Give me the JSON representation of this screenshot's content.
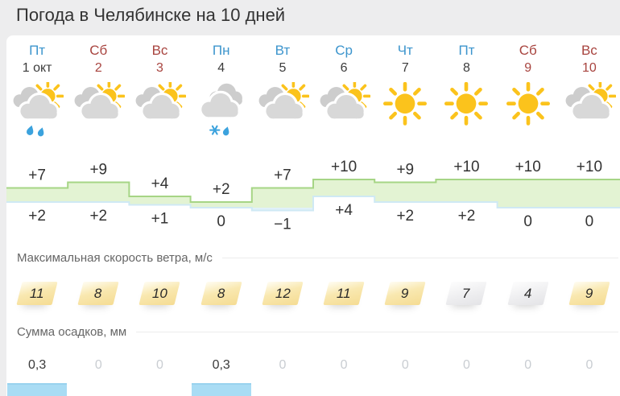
{
  "title": "Погода в Челябинске на 10 дней",
  "sections": {
    "wind_label": "Максимальная скорость ветра, м/с",
    "precip_label": "Сумма осадков, мм"
  },
  "days": [
    {
      "name": "Пт",
      "date": "1 окт",
      "name_color": "blue",
      "date_color": "dark",
      "icon": "cloud-sun-rain",
      "t_max": "+7",
      "t_min": "+2",
      "wind": "11",
      "wind_style": "yellow",
      "precip": "0,3",
      "precip_zero": false,
      "precip_bar": true
    },
    {
      "name": "Сб",
      "date": "2",
      "name_color": "red",
      "date_color": "red",
      "icon": "cloud-sun",
      "t_max": "+9",
      "t_min": "+2",
      "wind": "8",
      "wind_style": "yellow",
      "precip": "0",
      "precip_zero": true,
      "precip_bar": false
    },
    {
      "name": "Вс",
      "date": "3",
      "name_color": "red",
      "date_color": "red",
      "icon": "cloud-sun",
      "t_max": "+4",
      "t_min": "+1",
      "wind": "10",
      "wind_style": "yellow",
      "precip": "0",
      "precip_zero": true,
      "precip_bar": false
    },
    {
      "name": "Пн",
      "date": "4",
      "name_color": "blue",
      "date_color": "dark",
      "icon": "clouds-sleet",
      "t_max": "+2",
      "t_min": "0",
      "wind": "8",
      "wind_style": "yellow",
      "precip": "0,3",
      "precip_zero": false,
      "precip_bar": true
    },
    {
      "name": "Вт",
      "date": "5",
      "name_color": "blue",
      "date_color": "dark",
      "icon": "cloud-sun",
      "t_max": "+7",
      "t_min": "−1",
      "wind": "12",
      "wind_style": "yellow",
      "precip": "0",
      "precip_zero": true,
      "precip_bar": false
    },
    {
      "name": "Ср",
      "date": "6",
      "name_color": "blue",
      "date_color": "dark",
      "icon": "cloud-sun",
      "t_max": "+10",
      "t_min": "+4",
      "wind": "11",
      "wind_style": "yellow",
      "precip": "0",
      "precip_zero": true,
      "precip_bar": false
    },
    {
      "name": "Чт",
      "date": "7",
      "name_color": "blue",
      "date_color": "dark",
      "icon": "sun",
      "t_max": "+9",
      "t_min": "+2",
      "wind": "9",
      "wind_style": "yellow",
      "precip": "0",
      "precip_zero": true,
      "precip_bar": false
    },
    {
      "name": "Пт",
      "date": "8",
      "name_color": "blue",
      "date_color": "dark",
      "icon": "sun",
      "t_max": "+10",
      "t_min": "+2",
      "wind": "7",
      "wind_style": "gray",
      "precip": "0",
      "precip_zero": true,
      "precip_bar": false
    },
    {
      "name": "Сб",
      "date": "9",
      "name_color": "red",
      "date_color": "red",
      "icon": "sun",
      "t_max": "+10",
      "t_min": "0",
      "wind": "4",
      "wind_style": "gray",
      "precip": "0",
      "precip_zero": true,
      "precip_bar": false
    },
    {
      "name": "Вс",
      "date": "10",
      "name_color": "red",
      "date_color": "red",
      "icon": "cloud-sun",
      "t_max": "+10",
      "t_min": "0",
      "wind": "9",
      "wind_style": "yellow",
      "precip": "0",
      "precip_zero": true,
      "precip_bar": false
    }
  ],
  "chart_data": {
    "type": "area",
    "subtype": "step-band-max-min",
    "categories": [
      "1 окт",
      "2",
      "3",
      "4",
      "5",
      "6",
      "7",
      "8",
      "9",
      "10"
    ],
    "series": [
      {
        "name": "max",
        "values": [
          7,
          9,
          4,
          2,
          7,
          10,
          9,
          10,
          10,
          10
        ]
      },
      {
        "name": "min",
        "values": [
          2,
          2,
          1,
          0,
          -1,
          4,
          2,
          2,
          0,
          0
        ]
      }
    ],
    "labels_max": [
      "+7",
      "+9",
      "+4",
      "+2",
      "+7",
      "+10",
      "+9",
      "+10",
      "+10",
      "+10"
    ],
    "labels_min": [
      "+2",
      "+2",
      "+1",
      "0",
      "−1",
      "+4",
      "+2",
      "+2",
      "0",
      "0"
    ],
    "wind_values": [
      11,
      8,
      10,
      8,
      12,
      11,
      9,
      7,
      4,
      9
    ],
    "precip_values_mm": [
      0.3,
      0,
      0,
      0.3,
      0,
      0,
      0,
      0,
      0,
      0
    ],
    "ylim": [
      -4,
      12
    ],
    "grid": false,
    "legend": "none"
  },
  "colors": {
    "accent_blue": "#3d95cd",
    "accent_red": "#a8443f",
    "band_green": "#e3f3d3",
    "line_green": "#a6d585",
    "band_blue": "#e0f1f9",
    "line_blue": "#cfe9f4",
    "bar_blue": "#a9dcf4",
    "sun": "#fbc31c",
    "cloud_front": "#d8d8d8",
    "cloud_back": "#cdcdcd",
    "drop": "#3ba2dd"
  }
}
